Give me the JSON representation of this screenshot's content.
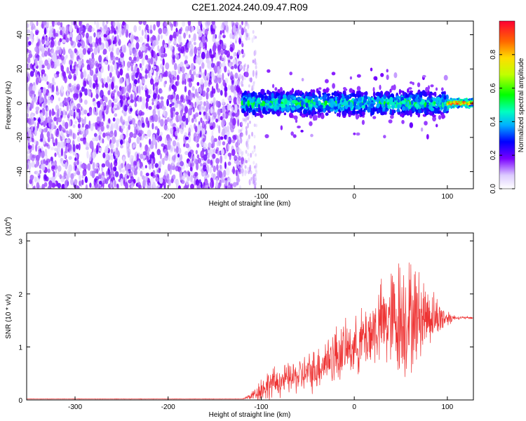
{
  "title": "C2E1.2024.240.09.47.R09",
  "colorbar": {
    "label": "Normalized spectral amplitude",
    "ticks": [
      0.0,
      0.2,
      0.4,
      0.6,
      0.8
    ],
    "tick_labels": [
      "0.0",
      "0.2",
      "0.4",
      "0.6",
      "0.8"
    ],
    "range": [
      0,
      1
    ]
  },
  "chart_data": [
    {
      "type": "heatmap",
      "name": "spectrogram",
      "title": "C2E1.2024.240.09.47.R09",
      "xlabel": "Height of straight line (km)",
      "ylabel": "Frequency (Hz)",
      "xlim": [
        -352,
        128
      ],
      "ylim": [
        -50,
        48
      ],
      "xticks": [
        -300,
        -200,
        -100,
        0,
        100
      ],
      "xtick_labels": [
        "-300",
        "-200",
        "-100",
        "0",
        "100"
      ],
      "yticks": [
        -40,
        -20,
        0,
        20,
        40
      ],
      "ytick_labels": [
        "-40",
        "-20",
        "0",
        "20",
        "40"
      ],
      "regions": [
        {
          "x_from": -352,
          "x_to": -120,
          "description": "broadband noise",
          "amplitude_range": [
            0.05,
            0.2
          ]
        },
        {
          "x_from": -120,
          "x_to": 100,
          "description": "signal band",
          "center_freq": 0,
          "half_width_hz": 8,
          "amplitude_range": [
            0.15,
            0.6
          ]
        },
        {
          "x_from": 100,
          "x_to": 128,
          "description": "steady tone",
          "center_freq": 0,
          "half_width_hz": 3,
          "amplitude_range": [
            0.6,
            0.95
          ]
        }
      ]
    },
    {
      "type": "line",
      "name": "snr",
      "xlabel": "Height of straight line (km)",
      "ylabel": "SNR (10 * v/v)",
      "y_multiplier_label": "(x10",
      "y_multiplier_exp": "4",
      "y_multiplier_close": ")",
      "xlim": [
        -352,
        128
      ],
      "ylim": [
        0,
        3.15
      ],
      "xticks": [
        -300,
        -200,
        -100,
        0,
        100
      ],
      "xtick_labels": [
        "-300",
        "-200",
        "-100",
        "0",
        "100"
      ],
      "yticks": [
        0,
        1,
        2,
        3
      ],
      "ytick_labels": [
        "0",
        "1",
        "2",
        "3"
      ],
      "color": "#ee3333",
      "envelope": {
        "x": [
          -352,
          -120,
          -110,
          -100,
          -90,
          -80,
          -70,
          -60,
          -50,
          -40,
          -30,
          -20,
          -10,
          0,
          10,
          20,
          30,
          40,
          50,
          60,
          70,
          80,
          90,
          100,
          110,
          128
        ],
        "mean": [
          0.02,
          0.02,
          0.08,
          0.2,
          0.3,
          0.35,
          0.4,
          0.45,
          0.5,
          0.6,
          0.75,
          0.85,
          0.95,
          1.0,
          1.15,
          1.3,
          1.45,
          1.5,
          1.55,
          1.55,
          1.6,
          1.6,
          1.55,
          1.55,
          1.55,
          1.55
        ],
        "amp": [
          0.005,
          0.005,
          0.1,
          0.3,
          0.35,
          0.35,
          0.35,
          0.4,
          0.45,
          0.5,
          0.55,
          0.7,
          0.6,
          0.6,
          0.75,
          0.85,
          0.95,
          1.2,
          1.45,
          1.3,
          1.0,
          0.7,
          0.45,
          0.2,
          0.03,
          0.03
        ]
      }
    }
  ]
}
